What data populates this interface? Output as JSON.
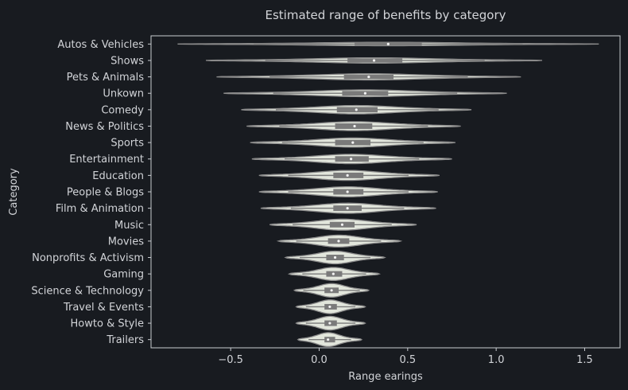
{
  "chart_data": {
    "type": "violin",
    "title": "Estimated range of benefits by category",
    "xlabel": "Range earings",
    "ylabel": "Category",
    "xlim": [
      -0.95,
      1.7
    ],
    "xticks": [
      -0.5,
      0.0,
      0.5,
      1.0,
      1.5
    ],
    "xtick_labels": [
      "−0.5",
      "0.0",
      "0.5",
      "1.0",
      "1.5"
    ],
    "grid": false,
    "colors": {
      "background": "#181b20",
      "plot_bg": "#181b20",
      "violin_fill": "#e2e6dc",
      "violin_edge": "#8a8a8a",
      "box": "#7a7a7a",
      "median": "#f4f4f4",
      "text": "#d2d4d8"
    },
    "categories": [
      "Autos & Vehicles",
      "Shows",
      "Pets & Animals",
      "Unkown",
      "Comedy",
      "News & Politics",
      "Sports",
      "Entertainment",
      "Education",
      "People & Blogs",
      "Film & Animation",
      "Music",
      "Movies",
      "Nonprofits & Activism",
      "Gaming",
      "Science & Technology",
      "Travel & Events",
      "Howto & Style",
      "Trailers"
    ],
    "series": [
      {
        "category": "Autos & Vehicles",
        "min": -0.8,
        "q1": 0.2,
        "median": 0.39,
        "q3": 0.58,
        "max": 1.58
      },
      {
        "category": "Shows",
        "min": -0.64,
        "q1": 0.16,
        "median": 0.31,
        "q3": 0.47,
        "max": 1.26
      },
      {
        "category": "Pets & Animals",
        "min": -0.58,
        "q1": 0.14,
        "median": 0.28,
        "q3": 0.42,
        "max": 1.14
      },
      {
        "category": "Unkown",
        "min": -0.54,
        "q1": 0.13,
        "median": 0.26,
        "q3": 0.39,
        "max": 1.06
      },
      {
        "category": "Comedy",
        "min": -0.44,
        "q1": 0.1,
        "median": 0.21,
        "q3": 0.33,
        "max": 0.86
      },
      {
        "category": "News & Politics",
        "min": -0.41,
        "q1": 0.09,
        "median": 0.2,
        "q3": 0.3,
        "max": 0.8
      },
      {
        "category": "Sports",
        "min": -0.39,
        "q1": 0.09,
        "median": 0.19,
        "q3": 0.29,
        "max": 0.77
      },
      {
        "category": "Entertainment",
        "min": -0.38,
        "q1": 0.09,
        "median": 0.18,
        "q3": 0.28,
        "max": 0.75
      },
      {
        "category": "Education",
        "min": -0.34,
        "q1": 0.08,
        "median": 0.16,
        "q3": 0.25,
        "max": 0.68
      },
      {
        "category": "People & Blogs",
        "min": -0.34,
        "q1": 0.08,
        "median": 0.16,
        "q3": 0.25,
        "max": 0.67
      },
      {
        "category": "Film & Animation",
        "min": -0.33,
        "q1": 0.08,
        "median": 0.16,
        "q3": 0.24,
        "max": 0.66
      },
      {
        "category": "Music",
        "min": -0.28,
        "q1": 0.06,
        "median": 0.13,
        "q3": 0.2,
        "max": 0.55
      },
      {
        "category": "Movies",
        "min": -0.23,
        "q1": 0.05,
        "median": 0.11,
        "q3": 0.17,
        "max": 0.46
      },
      {
        "category": "Nonprofits & Activism",
        "min": -0.19,
        "q1": 0.04,
        "median": 0.09,
        "q3": 0.14,
        "max": 0.37
      },
      {
        "category": "Gaming",
        "min": -0.17,
        "q1": 0.04,
        "median": 0.08,
        "q3": 0.13,
        "max": 0.34
      },
      {
        "category": "Science & Technology",
        "min": -0.14,
        "q1": 0.03,
        "median": 0.07,
        "q3": 0.11,
        "max": 0.28
      },
      {
        "category": "Travel & Events",
        "min": -0.13,
        "q1": 0.03,
        "median": 0.06,
        "q3": 0.1,
        "max": 0.26
      },
      {
        "category": "Howto & Style",
        "min": -0.13,
        "q1": 0.03,
        "median": 0.06,
        "q3": 0.1,
        "max": 0.26
      },
      {
        "category": "Trailers",
        "min": -0.12,
        "q1": 0.03,
        "median": 0.05,
        "q3": 0.09,
        "max": 0.24
      }
    ]
  }
}
